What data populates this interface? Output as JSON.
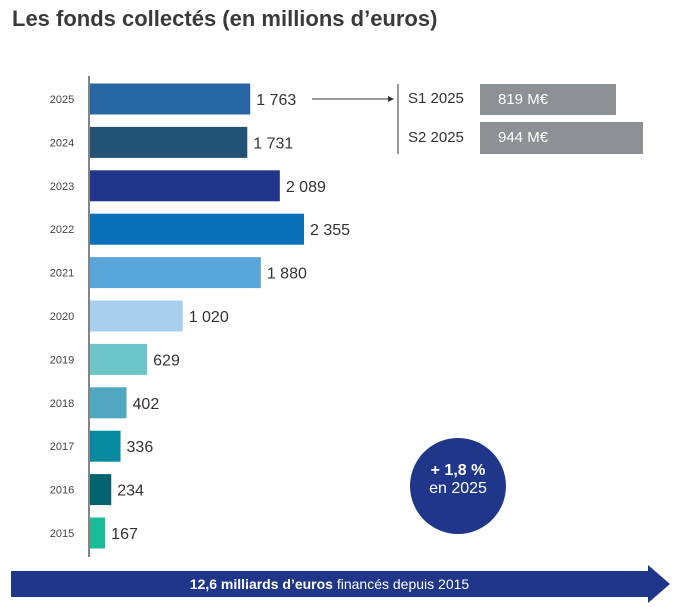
{
  "title": "Les fonds collectés (en millions d’euros)",
  "chart_data": {
    "type": "bar",
    "orientation": "horizontal",
    "title": "Les fonds collectés (en millions d’euros)",
    "categories": [
      "2025",
      "2024",
      "2023",
      "2022",
      "2021",
      "2020",
      "2019",
      "2018",
      "2017",
      "2016",
      "2015"
    ],
    "values": [
      1763,
      1731,
      2089,
      2355,
      1880,
      1020,
      629,
      402,
      336,
      234,
      167
    ],
    "value_labels": [
      "1 763",
      "1 731",
      "2 089",
      "2 355",
      "1 880",
      "1 020",
      "629",
      "402",
      "336",
      "234",
      "167"
    ],
    "colors": [
      "#2566a3",
      "#225376",
      "#1f358a",
      "#0870b8",
      "#5aa5d8",
      "#a8d0ee",
      "#6cc6c9",
      "#4fa8c0",
      "#078aa0",
      "#006470",
      "#1abc98"
    ],
    "grid": false
  },
  "breakdown": {
    "items": [
      {
        "label": "S1 2025",
        "value": "819 M€",
        "amount": 819
      },
      {
        "label": "S2 2025",
        "value": "944 M€",
        "amount": 944
      }
    ],
    "color": "#8d9094"
  },
  "badge": {
    "line1": "+ 1,8 %",
    "line2": "en 2025",
    "color": "#1f368a"
  },
  "banner": {
    "bold": "12,6 milliards d’euros",
    "rest": " financés depuis 2015",
    "color": "#1f368a"
  }
}
